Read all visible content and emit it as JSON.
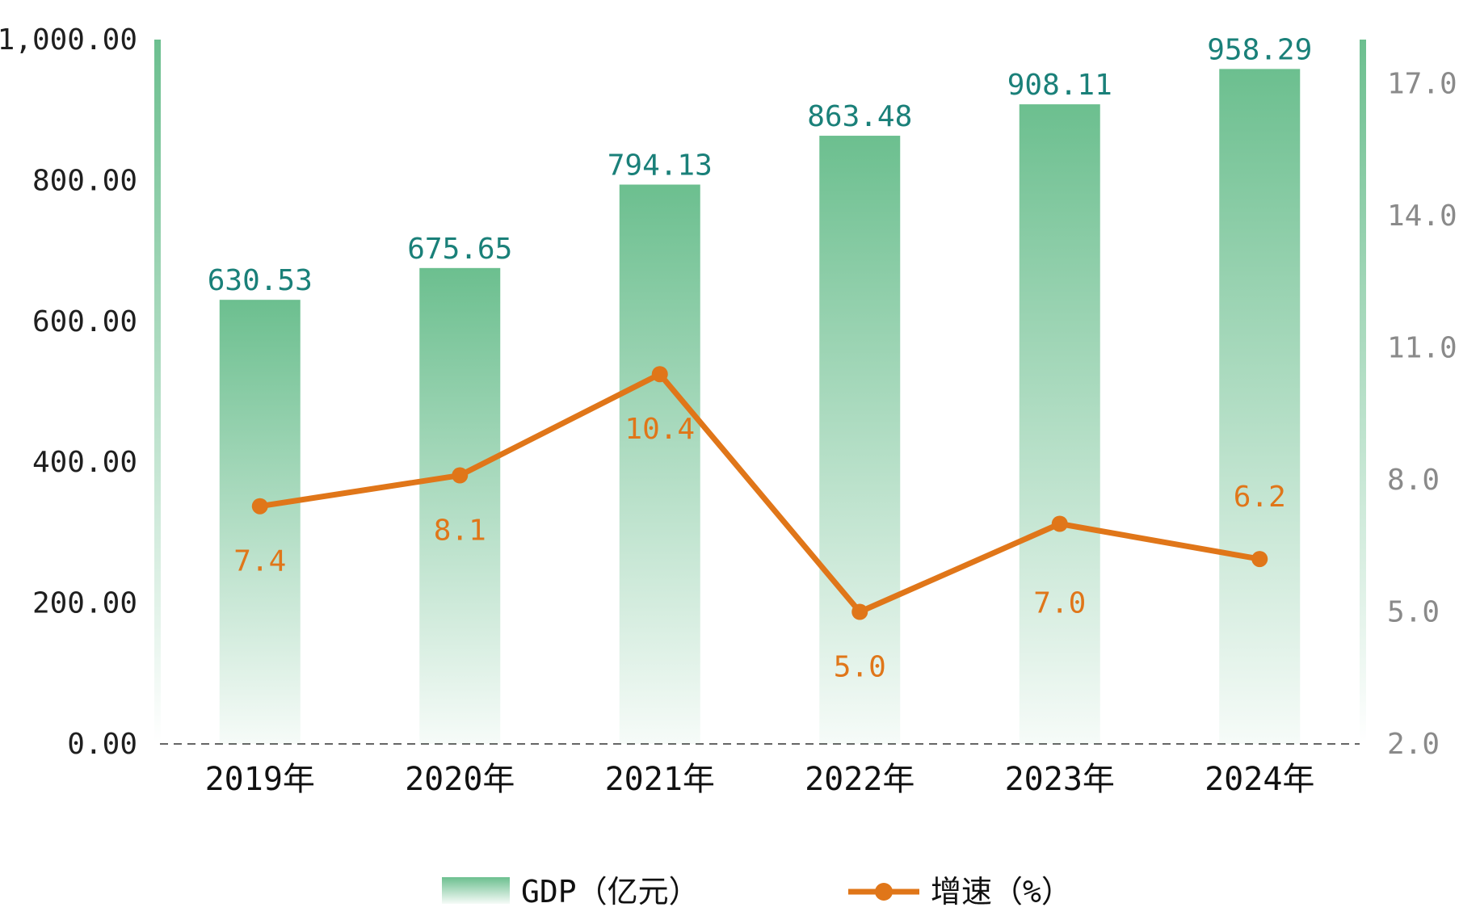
{
  "chart_data": {
    "type": "bar",
    "categories": [
      "2019年",
      "2020年",
      "2021年",
      "2022年",
      "2023年",
      "2024年"
    ],
    "series": [
      {
        "name": "GDP（亿元）",
        "type": "bar",
        "axis": "left",
        "values": [
          630.53,
          675.65,
          794.13,
          863.48,
          908.11,
          958.29
        ],
        "labels": [
          "630.53",
          "675.65",
          "794.13",
          "863.48",
          "908.11",
          "958.29"
        ],
        "color": "#6cbf8f"
      },
      {
        "name": "增速（%）",
        "type": "line",
        "axis": "right",
        "values": [
          7.4,
          8.1,
          10.4,
          5.0,
          7.0,
          6.2
        ],
        "labels": [
          "7.4",
          "8.1",
          "10.4",
          "5.0",
          "7.0",
          "6.2"
        ],
        "color": "#e07619"
      }
    ],
    "y_left": {
      "ylim": [
        0,
        1000
      ],
      "ticks": [
        0,
        200,
        400,
        600,
        800,
        1000
      ],
      "tick_labels": [
        "0.00",
        "200.00",
        "400.00",
        "600.00",
        "800.00",
        "1,000.00"
      ]
    },
    "y_right": {
      "ylim": [
        2.0,
        18.0
      ],
      "ticks": [
        2.0,
        5.0,
        8.0,
        11.0,
        14.0,
        17.0
      ],
      "tick_labels": [
        "2.0",
        "5.0",
        "8.0",
        "11.0",
        "14.0",
        "17.0"
      ]
    },
    "grid": false,
    "legend_position": "bottom",
    "colors": {
      "bar_top": "#6cbf8f",
      "bar_bottom": "#ffffff",
      "line": "#e07619",
      "bar_label": "#1a8079",
      "line_label": "#e07619",
      "axis_bar": "#7cc79a",
      "right_tick": "#8a8a8a"
    }
  }
}
